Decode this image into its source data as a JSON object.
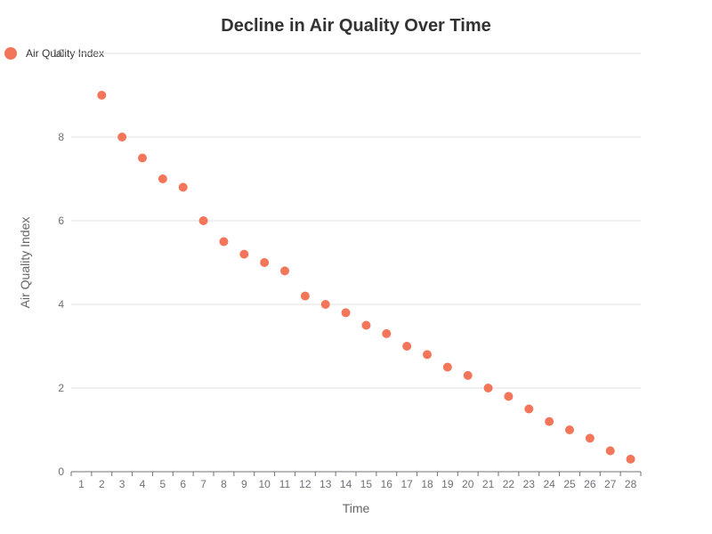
{
  "chart_data": {
    "type": "scatter",
    "title": "Decline in Air Quality Over Time",
    "xlabel": "Time",
    "ylabel": "Air Quality Index",
    "x": [
      1,
      2,
      3,
      4,
      5,
      6,
      7,
      8,
      9,
      10,
      11,
      12,
      13,
      14,
      15,
      16,
      17,
      18,
      19,
      20,
      21,
      22,
      23,
      24,
      25,
      26,
      27,
      28
    ],
    "xlim": [
      1,
      28
    ],
    "ylim": [
      0,
      10
    ],
    "yticks": [
      0,
      2,
      4,
      6,
      8,
      10
    ],
    "grid": "horizontal",
    "legend_position": "top-left",
    "series": [
      {
        "name": "Air Quality Index",
        "color": "#f4765a",
        "points": [
          [
            2,
            9
          ],
          [
            3,
            8
          ],
          [
            4,
            7.5
          ],
          [
            5,
            7
          ],
          [
            6,
            6.8
          ],
          [
            7,
            6
          ],
          [
            8,
            5.5
          ],
          [
            9,
            5.2
          ],
          [
            10,
            5
          ],
          [
            11,
            4.8
          ],
          [
            12,
            4.2
          ],
          [
            13,
            4
          ],
          [
            14,
            3.8
          ],
          [
            15,
            3.5
          ],
          [
            16,
            3.3
          ],
          [
            17,
            3
          ],
          [
            18,
            2.8
          ],
          [
            19,
            2.5
          ],
          [
            20,
            2.3
          ],
          [
            21,
            2
          ],
          [
            22,
            1.8
          ],
          [
            23,
            1.5
          ],
          [
            24,
            1.2
          ],
          [
            25,
            1
          ],
          [
            26,
            0.8
          ],
          [
            27,
            0.5
          ],
          [
            28,
            0.3
          ]
        ]
      }
    ]
  }
}
